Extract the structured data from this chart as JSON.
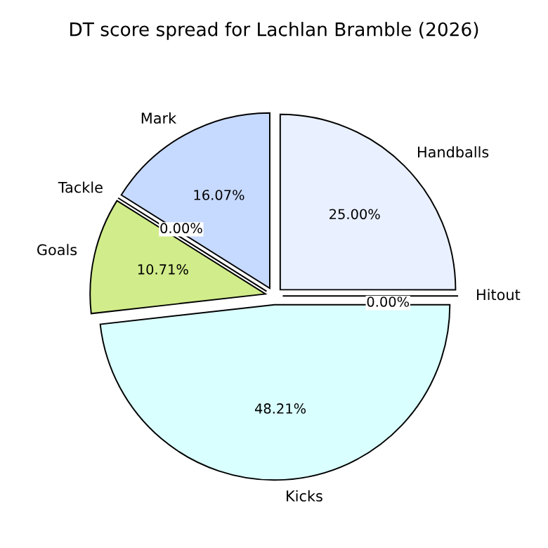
{
  "chart_data": {
    "type": "pie",
    "title": "DT score spread for Lachlan Bramble (2026)",
    "categories": [
      "Handballs",
      "Hitout",
      "Kicks",
      "Goals",
      "Tackle",
      "Mark"
    ],
    "values": [
      25.0,
      0.0,
      48.21,
      10.71,
      0.0,
      16.07
    ],
    "colors": [
      "#e9f0ff",
      "#e0ffe0",
      "#d9ffff",
      "#d1ec8a",
      "#ffd9d9",
      "#c6d9ff"
    ],
    "value_labels": [
      "25.00%",
      "0.00%",
      "48.21%",
      "10.71%",
      "0.00%",
      "16.07%"
    ]
  }
}
